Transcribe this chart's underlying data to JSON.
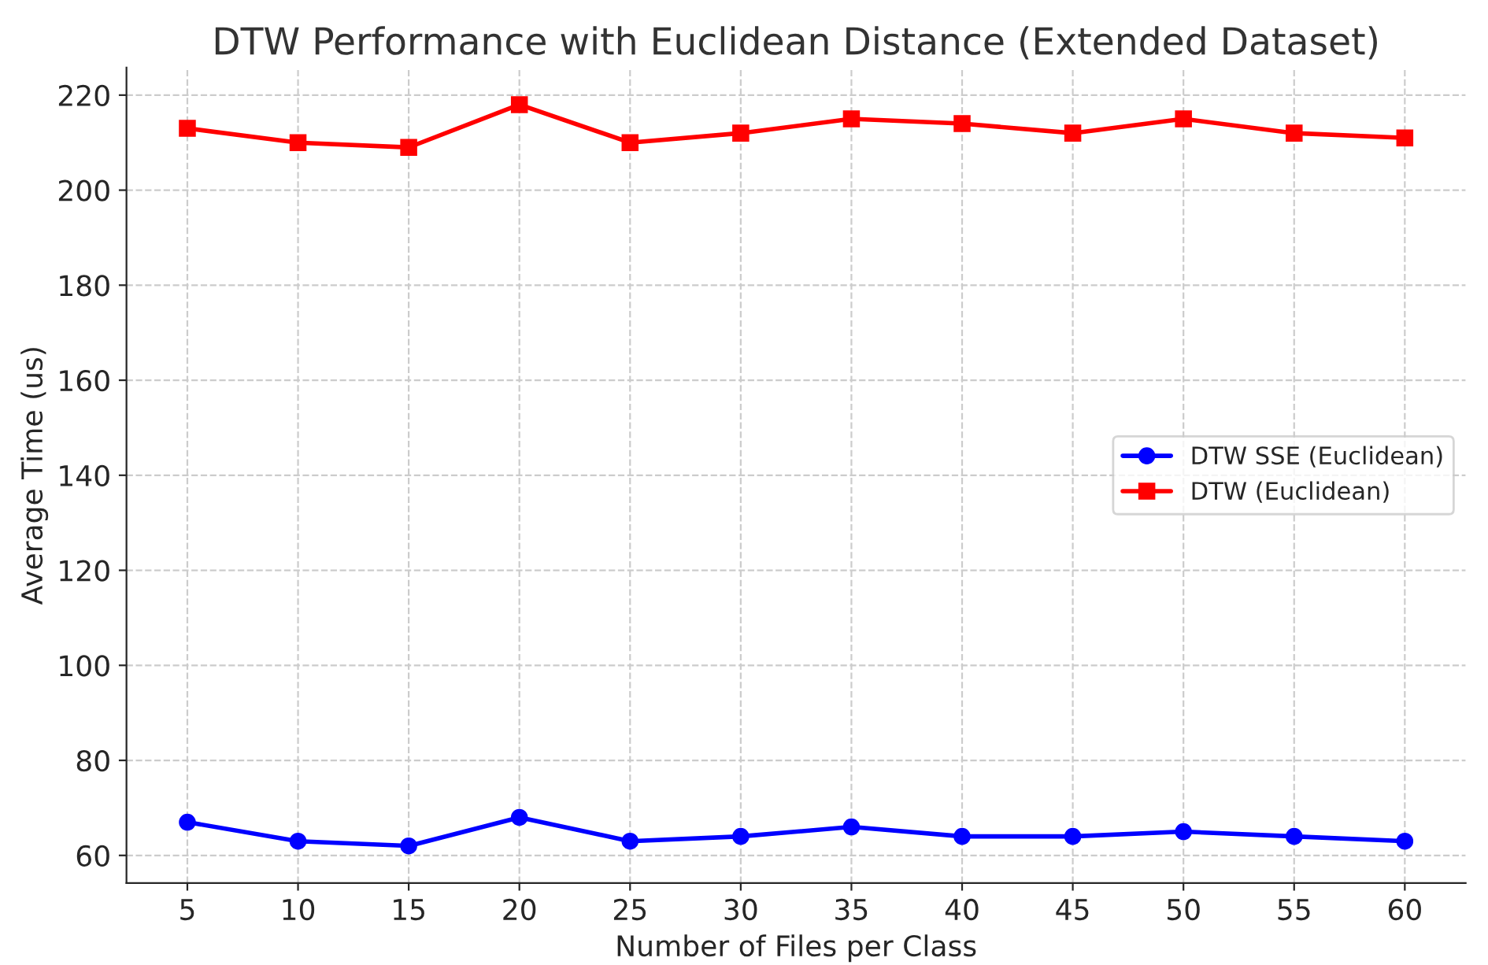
{
  "chart_data": {
    "type": "line",
    "title": "DTW Performance with Euclidean Distance (Extended Dataset)",
    "xlabel": "Number of Files per Class",
    "ylabel": "Average Time (us)",
    "x": [
      5,
      10,
      15,
      20,
      25,
      30,
      35,
      40,
      45,
      50,
      55,
      60
    ],
    "series": [
      {
        "name": "DTW SSE (Euclidean)",
        "color": "#0000ff",
        "marker": "circle",
        "values": [
          67,
          63,
          62,
          68,
          63,
          64,
          66,
          64,
          64,
          65,
          64,
          63
        ]
      },
      {
        "name": "DTW (Euclidean)",
        "color": "#ff0000",
        "marker": "square",
        "values": [
          213,
          210,
          209,
          218,
          210,
          212,
          215,
          214,
          212,
          215,
          212,
          211
        ]
      }
    ],
    "xlim": [
      2.25,
      62.75
    ],
    "xticks": [
      5,
      10,
      15,
      20,
      25,
      30,
      35,
      40,
      45,
      50,
      55,
      60
    ],
    "ylim": [
      54.2,
      225.8
    ],
    "yticks": [
      60,
      80,
      100,
      120,
      140,
      160,
      180,
      200,
      220
    ],
    "grid": true,
    "legend": "right",
    "line_style": "solid"
  }
}
